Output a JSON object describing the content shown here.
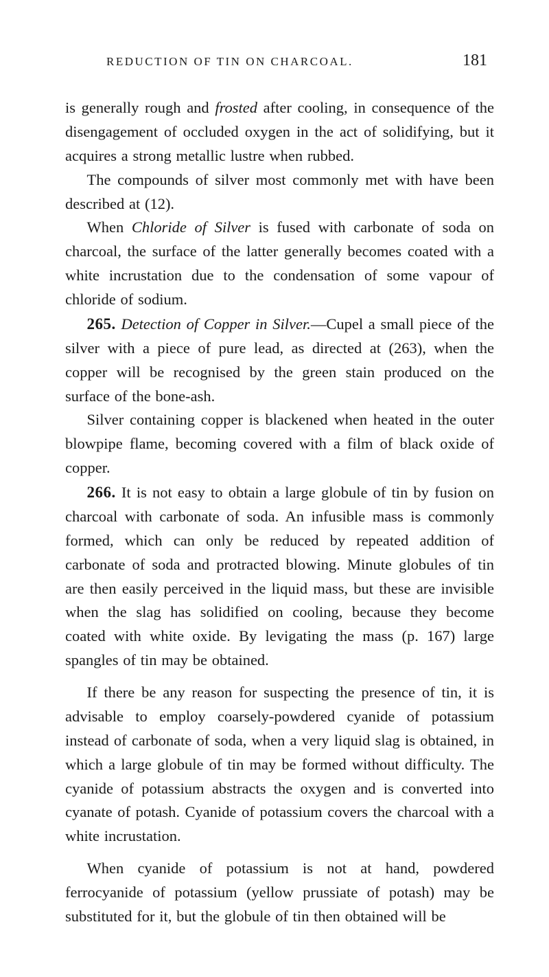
{
  "header": {
    "running_title": "REDUCTION OF TIN ON CHARCOAL.",
    "page_number": "181"
  },
  "paragraphs": {
    "p1_a": "is generally rough and ",
    "p1_b": "frosted",
    "p1_c": " after cooling, in consequence of the disengagement of occluded oxygen in the act of solidifying, but it acquires a strong metallic lustre when rubbed.",
    "p2": "The compounds of silver most commonly met with have been described at (12).",
    "p3_a": "When ",
    "p3_b": "Chloride of Silver",
    "p3_c": " is fused with carbonate of soda on charcoal, the surface of the latter generally becomes coated with a white incrustation due to the condensation of some vapour of chloride of sodium.",
    "p4_num": "265.",
    "p4_title": " Detection of Copper in Silver.",
    "p4_body": "—Cupel a small piece of the silver with a piece of pure lead, as directed at (263), when the copper will be recognised by the green stain produced on the surface of the bone-ash.",
    "p5": "Silver containing copper is blackened when heated in the outer blowpipe flame, becoming covered with a film of black oxide of copper.",
    "p6_num": "266.",
    "p6_body": " It is not easy to obtain a large globule of tin by fusion on charcoal with carbonate of soda. An infusible mass is commonly formed, which can only be reduced by repeated addition of carbonate of soda and protracted blowing. Minute globules of tin are then easily perceived in the liquid mass, but these are invisible when the slag has solidified on cooling, because they become coated with white oxide. By levigating the mass (p. 167) large spangles of tin may be obtained.",
    "p7": "If there be any reason for suspecting the presence of tin, it is advisable to employ coarsely-powdered cyanide of potassium instead of carbonate of soda, when a very liquid slag is obtained, in which a large globule of tin may be formed without difficulty. The cyanide of potassium abstracts the oxygen and is converted into cyanate of potash. Cyanide of potassium covers the charcoal with a white incrustation.",
    "p8": "When cyanide of potassium is not at hand, powdered ferrocyanide of potassium (yellow prussiate of potash) may be substituted for it, but the globule of tin then obtained will be"
  },
  "style": {
    "background_color": "#ffffff",
    "text_color": "#1a1a1a",
    "body_fontsize": 22.5,
    "header_fontsize": 17,
    "pagenum_fontsize": 24,
    "line_height": 1.55,
    "font_family": "Georgia, Times New Roman, serif"
  }
}
